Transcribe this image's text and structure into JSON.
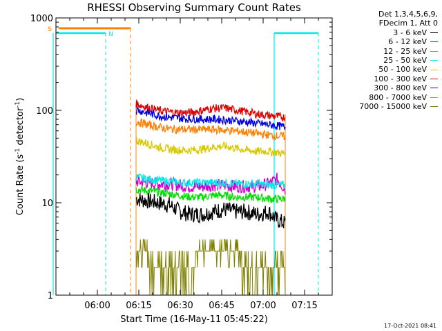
{
  "chart_data": {
    "type": "line",
    "title": "RHESSI Observing Summary Count Rates",
    "xlabel": "Start Time (16-May-11 05:45:22)",
    "ylabel_main": "Count Rate (s",
    "ylabel_sup1": "-1",
    "ylabel_mid": " detector",
    "ylabel_sup2": "-1",
    "ylabel_end": ")",
    "y_scale": "log",
    "ylim": [
      1,
      1000
    ],
    "xlim": [
      "05:45",
      "07:25"
    ],
    "x_ticks": [
      "06:00",
      "06:15",
      "06:30",
      "06:45",
      "07:00",
      "07:15"
    ],
    "y_ticks": [
      "1",
      "10",
      "100",
      "1000"
    ],
    "legend_header": [
      "Det 1,3,4,5,6,9,",
      "FDecim 1, Att 0"
    ],
    "legend_position": "top-right",
    "data_window": {
      "start": "06:14",
      "end": "07:08"
    },
    "saa_label": "S",
    "night_label": "N",
    "saa_intervals": [
      [
        "05:46",
        "06:12"
      ]
    ],
    "night_intervals": [
      [
        "05:44",
        "06:03"
      ],
      [
        "07:04",
        "07:20"
      ]
    ],
    "series": [
      {
        "name": "3 - 6 keV",
        "color": "#000000",
        "x": [
          "06:14",
          "06:18",
          "06:22",
          "06:26",
          "06:30",
          "06:34",
          "06:38",
          "06:42",
          "06:46",
          "06:50",
          "06:54",
          "06:58",
          "07:02",
          "07:05",
          "07:08"
        ],
        "values": [
          11,
          10.5,
          10,
          9.5,
          8,
          7.5,
          7.5,
          8,
          8.5,
          8,
          8,
          7.5,
          8,
          6.5,
          6
        ]
      },
      {
        "name": "6 - 12 keV",
        "color": "#d000d0",
        "x": [
          "06:14",
          "06:18",
          "06:22",
          "06:26",
          "06:30",
          "06:34",
          "06:38",
          "06:42",
          "06:46",
          "06:50",
          "06:54",
          "06:58",
          "07:02",
          "07:05",
          "07:08"
        ],
        "values": [
          17,
          16.5,
          16,
          16,
          15.5,
          15,
          15,
          15.5,
          15.5,
          15,
          15,
          15,
          16,
          18,
          14
        ]
      },
      {
        "name": "12 - 25 keV",
        "color": "#00e000",
        "x": [
          "06:14",
          "06:18",
          "06:22",
          "06:26",
          "06:30",
          "06:34",
          "06:38",
          "06:42",
          "06:46",
          "06:50",
          "06:54",
          "06:58",
          "07:02",
          "07:05",
          "07:08"
        ],
        "values": [
          14,
          13.5,
          13,
          12.5,
          12,
          11.5,
          11.5,
          12,
          12,
          11.5,
          11.5,
          11.5,
          11,
          11,
          11
        ]
      },
      {
        "name": "25 - 50 keV",
        "color": "#00e8e8",
        "x": [
          "06:14",
          "06:18",
          "06:22",
          "06:26",
          "06:30",
          "06:34",
          "06:38",
          "06:42",
          "06:46",
          "06:50",
          "06:54",
          "06:58",
          "07:02",
          "07:05",
          "07:08"
        ],
        "values": [
          19,
          18,
          17.5,
          17,
          16.5,
          16.5,
          16.5,
          16.5,
          16.5,
          16,
          16,
          16,
          15.5,
          15.5,
          15.5
        ]
      },
      {
        "name": "50 - 100 keV",
        "color": "#d8c800",
        "x": [
          "06:14",
          "06:18",
          "06:22",
          "06:26",
          "06:30",
          "06:34",
          "06:38",
          "06:42",
          "06:46",
          "06:50",
          "06:54",
          "06:58",
          "07:02",
          "07:05",
          "07:08"
        ],
        "values": [
          47,
          44,
          40,
          38,
          37,
          37,
          38,
          40,
          41,
          39,
          37,
          36,
          36,
          35,
          34
        ]
      },
      {
        "name": "100 - 300 keV",
        "color": "#e00000",
        "x": [
          "06:14",
          "06:18",
          "06:22",
          "06:26",
          "06:30",
          "06:34",
          "06:38",
          "06:42",
          "06:46",
          "06:50",
          "06:54",
          "06:58",
          "07:02",
          "07:05",
          "07:08"
        ],
        "values": [
          118,
          108,
          100,
          96,
          94,
          95,
          100,
          105,
          106,
          101,
          96,
          91,
          88,
          86,
          84
        ]
      },
      {
        "name": "300 - 800 keV",
        "color": "#0000e0",
        "x": [
          "06:14",
          "06:18",
          "06:22",
          "06:26",
          "06:30",
          "06:34",
          "06:38",
          "06:42",
          "06:46",
          "06:50",
          "06:54",
          "06:58",
          "07:02",
          "07:05",
          "07:08"
        ],
        "values": [
          102,
          94,
          88,
          84,
          82,
          81,
          80,
          80,
          79,
          77,
          75,
          72,
          70,
          68,
          66
        ]
      },
      {
        "name": "800 - 7000 keV",
        "color": "#ff8000",
        "x": [
          "06:14",
          "06:18",
          "06:22",
          "06:26",
          "06:30",
          "06:34",
          "06:38",
          "06:42",
          "06:46",
          "06:50",
          "06:54",
          "06:58",
          "07:02",
          "07:05",
          "07:08"
        ],
        "values": [
          76,
          70,
          66,
          63,
          62,
          62,
          62,
          62,
          61,
          60,
          58,
          56,
          54,
          53,
          52
        ]
      },
      {
        "name": "7000 - 15000 keV",
        "color": "#808000",
        "x": [
          "06:14",
          "06:18",
          "06:22",
          "06:26",
          "06:30",
          "06:34",
          "06:38",
          "06:42",
          "06:46",
          "06:50",
          "06:54",
          "06:58",
          "07:02",
          "07:05",
          "07:08"
        ],
        "values": [
          3,
          2.5,
          2,
          2,
          2,
          2,
          3,
          3.5,
          3,
          3,
          2,
          2,
          2,
          2,
          2
        ]
      }
    ]
  },
  "footer_date": "17-Oct-2021 08:41"
}
